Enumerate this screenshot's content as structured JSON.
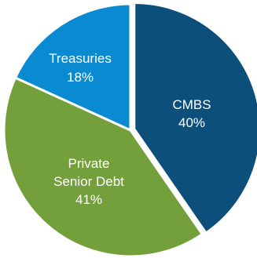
{
  "chart_data": {
    "type": "pie",
    "title": "",
    "slices": [
      {
        "label": "CMBS",
        "value": 40,
        "value_label": "40%",
        "color": "#0b4f7a"
      },
      {
        "label": "Private",
        "label_line2": "Senior Debt",
        "value": 41,
        "value_label": "41%",
        "color": "#74a03b"
      },
      {
        "label": "Treasuries",
        "value": 18,
        "value_label": "18%",
        "color": "#0a8ad0"
      }
    ],
    "start_angle_deg": 0,
    "direction": "clockwise",
    "legend": "none",
    "data_labels": "inside"
  }
}
